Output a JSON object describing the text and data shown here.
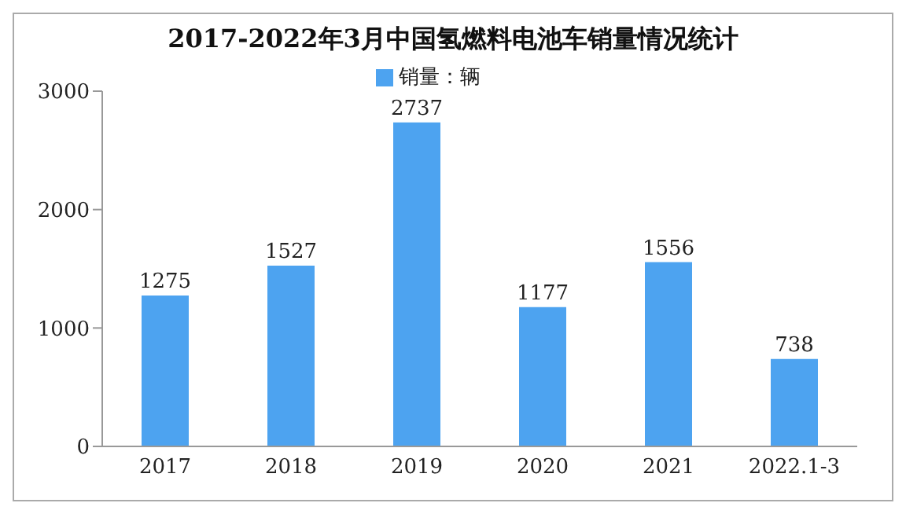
{
  "chart_data": {
    "type": "bar",
    "title": "2017-2022年3月中国氢燃料电池车销量情况统计",
    "categories": [
      "2017",
      "2018",
      "2019",
      "2020",
      "2021",
      "2022.1-3"
    ],
    "series": [
      {
        "name": "销量：辆",
        "color": "#4da3f0",
        "values": [
          1275,
          1527,
          2737,
          1177,
          1556,
          738
        ]
      }
    ],
    "ylim": [
      0,
      3000
    ],
    "yticks": [
      0,
      1000,
      2000,
      3000
    ],
    "legend": "top",
    "data_labels": true
  }
}
